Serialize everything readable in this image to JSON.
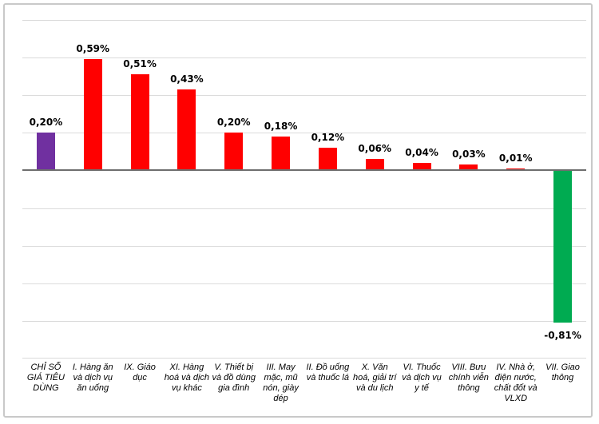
{
  "frame": {
    "border_color": "#C9C9C9",
    "background": "#FFFFFF"
  },
  "chart_data": {
    "type": "bar",
    "title": "",
    "xlabel": "",
    "ylabel": "",
    "legend": "none",
    "grid": true,
    "ylim": [
      -1.0,
      0.8
    ],
    "gridline_step": 0.2,
    "categories": [
      "CHỈ SỐ GIÁ TIÊU DÙNG",
      "I. Hàng ăn và dịch vụ ăn uống",
      "IX. Giáo dục",
      "XI. Hàng hoá và dịch vụ khác",
      "V. Thiết bị và đồ dùng gia đình",
      "III. May mặc, mũ nón, giày dép",
      "II. Đồ uống và thuốc lá",
      "X. Văn hoá, giải trí và du lịch",
      "VI. Thuốc và dịch vụ y tế",
      "VIII. Bưu chính viễn thông",
      "IV. Nhà ở, điện nước, chất đốt và VLXD",
      "VII. Giao thông"
    ],
    "values": [
      0.2,
      0.59,
      0.51,
      0.43,
      0.2,
      0.18,
      0.12,
      0.06,
      0.04,
      0.03,
      0.01,
      -0.81
    ],
    "value_labels": [
      "0,20%",
      "0,59%",
      "0,51%",
      "0,43%",
      "0,20%",
      "0,18%",
      "0,12%",
      "0,06%",
      "0,04%",
      "0,03%",
      "0,01%",
      "-0,81%"
    ],
    "bar_colors": [
      "#7030A0",
      "#FF0000",
      "#FF0000",
      "#FF0000",
      "#FF0000",
      "#FF0000",
      "#FF0000",
      "#FF0000",
      "#FF0000",
      "#FF0000",
      "#FF0000",
      "#00AB51"
    ],
    "colors": {
      "cpi_bar": "#7030A0",
      "positive_bar": "#FF0000",
      "negative_bar": "#00AB51",
      "gridline": "#DBDBDB",
      "zero_axis": "#6E6E6E",
      "label_text": "#000000"
    }
  }
}
